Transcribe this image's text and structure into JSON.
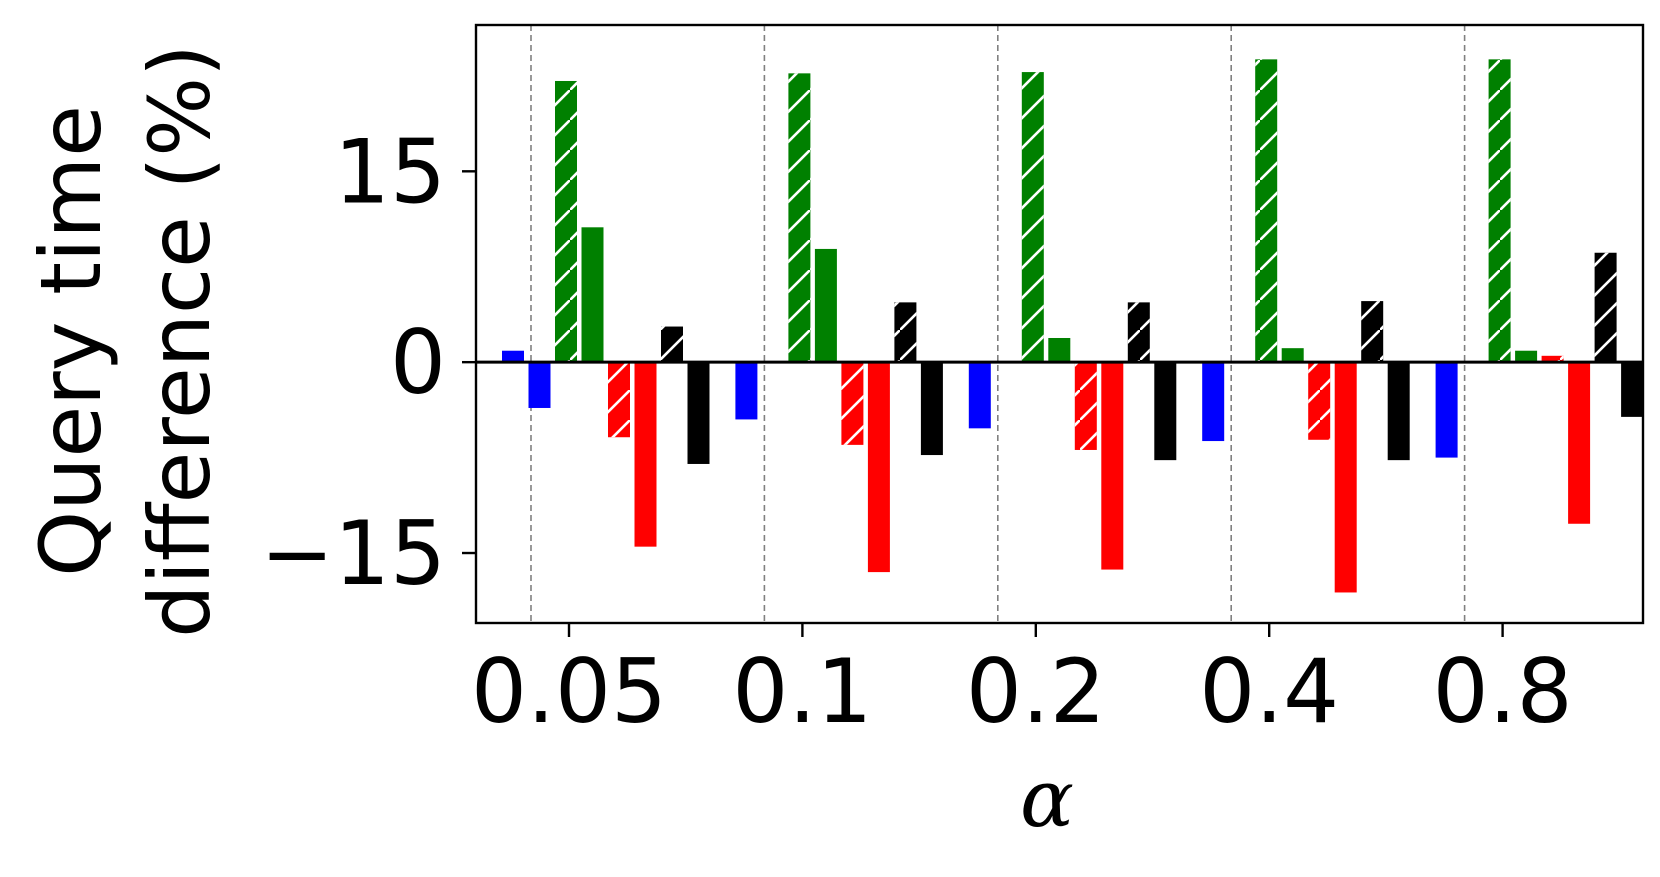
{
  "chart_data": {
    "type": "bar",
    "title": "",
    "xlabel": "α",
    "ylabel_lines": [
      "Query time",
      "difference (%)"
    ],
    "categories": [
      "0.05",
      "0.1",
      "0.2",
      "0.4",
      "0.8"
    ],
    "ylim": [
      -20.5,
      26.5
    ],
    "yticks": [
      -15,
      0,
      15
    ],
    "ytick_labels": [
      "−15",
      "0",
      "15"
    ],
    "grid": false,
    "legend": "none",
    "group_separators": "dashed vertical lines",
    "series": [
      {
        "color": "#0000ff",
        "hatch": "none",
        "values": [
          0.9,
          -4.5,
          -5.2,
          -6.2,
          -7.5
        ]
      },
      {
        "color": "#0000ff",
        "hatch": "none",
        "values": [
          -3.6,
          0,
          0,
          0,
          0
        ]
      },
      {
        "color": "#008000",
        "hatch": "diagonal",
        "values": [
          22.1,
          22.7,
          22.8,
          23.8,
          23.8
        ]
      },
      {
        "color": "#008000",
        "hatch": "none",
        "values": [
          10.6,
          8.9,
          1.9,
          1.1,
          0.9
        ]
      },
      {
        "color": "#ff0000",
        "hatch": "diagonal",
        "values": [
          -5.9,
          -6.5,
          -6.9,
          -6.1,
          0.5
        ]
      },
      {
        "color": "#ff0000",
        "hatch": "none",
        "values": [
          -14.5,
          -16.5,
          -16.3,
          -18.1,
          -12.7
        ]
      },
      {
        "color": "#000000",
        "hatch": "diagonal",
        "values": [
          2.8,
          4.7,
          4.7,
          4.8,
          8.6
        ]
      },
      {
        "color": "#000000",
        "hatch": "none",
        "values": [
          -8.0,
          -7.3,
          -7.7,
          -7.7,
          -4.3
        ]
      }
    ]
  }
}
